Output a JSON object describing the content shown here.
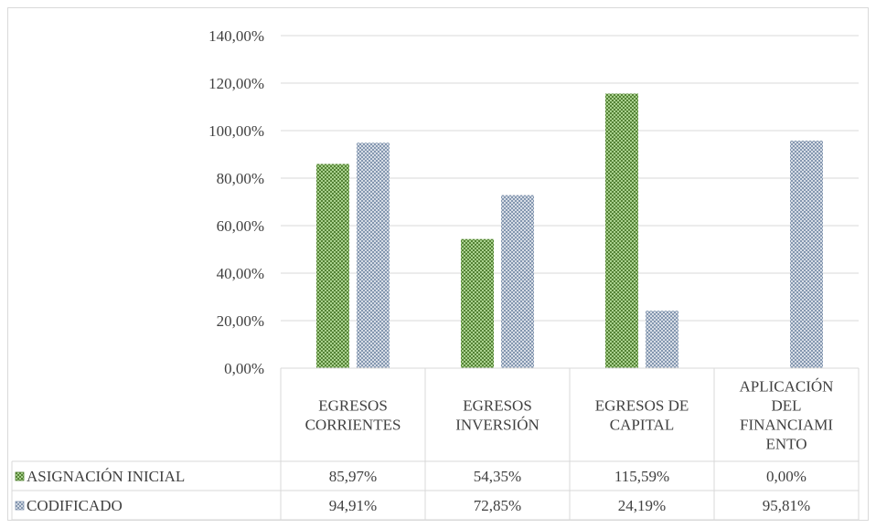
{
  "chart_data": {
    "type": "bar",
    "title": "",
    "xlabel": "",
    "ylabel": "",
    "ylim": [
      0,
      140
    ],
    "yticks": [
      "0,00%",
      "20,00%",
      "40,00%",
      "60,00%",
      "80,00%",
      "100,00%",
      "120,00%",
      "140,00%"
    ],
    "ytick_values": [
      0,
      20,
      40,
      60,
      80,
      100,
      120,
      140
    ],
    "grid": true,
    "legend": "data-table",
    "categories": [
      [
        "EGRESOS",
        "CORRIENTES"
      ],
      [
        "EGRESOS",
        "INVERSIÓN"
      ],
      [
        "EGRESOS DE",
        "CAPITAL"
      ],
      [
        "APLICACIÓN",
        "DEL",
        "FINANCIAMI",
        "ENTO"
      ]
    ],
    "series": [
      {
        "name": "ASIGNACIÓN INICIAL",
        "values": [
          85.97,
          54.35,
          115.59,
          0.0
        ],
        "labels": [
          "85,97%",
          "54,35%",
          "115,59%",
          "0,00%"
        ],
        "color": "#548235",
        "color2": "#a9d18e"
      },
      {
        "name": "CODIFICADO",
        "values": [
          94.91,
          72.85,
          24.19,
          95.81
        ],
        "labels": [
          "94,91%",
          "72,85%",
          "24,19%",
          "95,81%"
        ],
        "color": "#8497b0",
        "color2": "#d6dce5"
      }
    ]
  }
}
